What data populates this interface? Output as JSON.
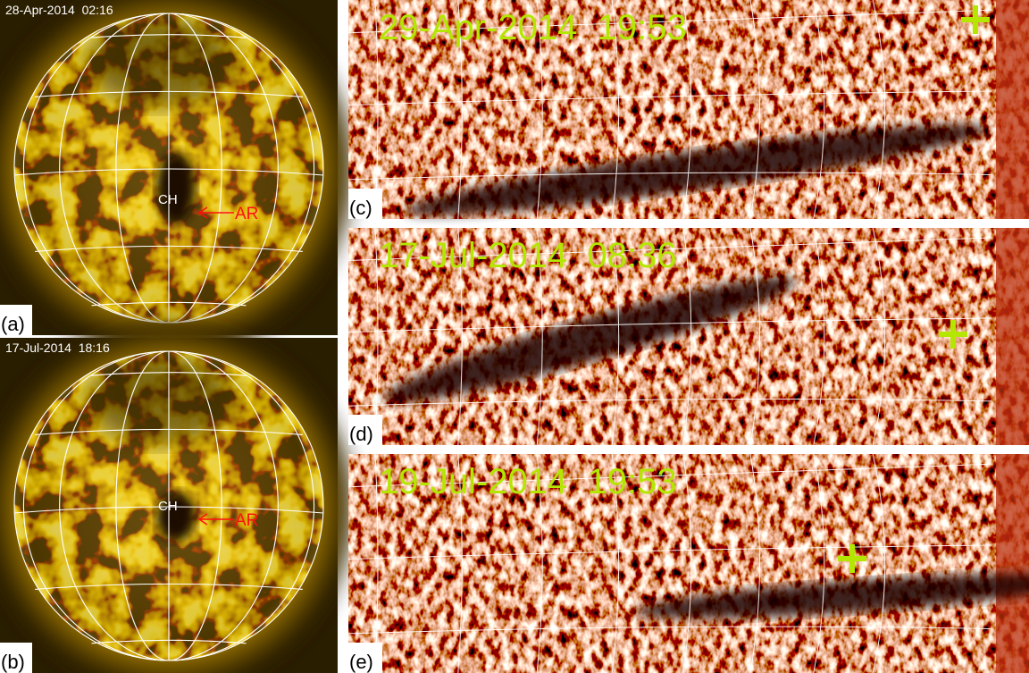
{
  "panels": [
    {
      "label": "(a)",
      "date": "28-Apr-2014  02:16",
      "ch": "CH",
      "ar": "AR"
    },
    {
      "label": "(b)",
      "date": "17-Jul-2014  18:16",
      "ch": "CH",
      "ar": "AR"
    },
    {
      "label": "(c)",
      "date": "29-Apr-2014  19:53"
    },
    {
      "label": "(d)",
      "date": "17-Jul-2014  08:36"
    },
    {
      "label": "(e)",
      "date": "19-Jul-2014  19:53"
    }
  ]
}
